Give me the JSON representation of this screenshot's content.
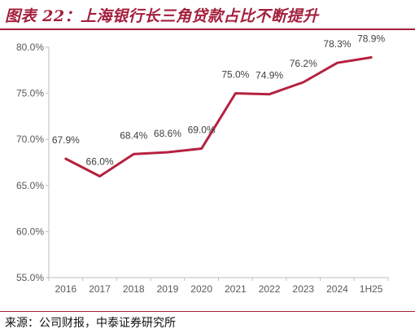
{
  "title": "图表 22：上海银行长三角贷款占比不断提升",
  "source": "来源：公司财报，中泰证券研究所",
  "colors": {
    "accent": "#a31f3c",
    "line": "#b5213f",
    "axis": "#bfbfbf",
    "text": "#595959"
  },
  "chart_data": {
    "type": "line",
    "categories": [
      "2016",
      "2017",
      "2018",
      "2019",
      "2020",
      "2021",
      "2022",
      "2023",
      "2024",
      "1H25"
    ],
    "series": [
      {
        "values": [
          67.9,
          66.0,
          68.4,
          68.6,
          69.0,
          75.0,
          74.9,
          76.2,
          78.3,
          78.9
        ],
        "labels": [
          "67.9%",
          "66.0%",
          "68.4%",
          "68.6%",
          "69.0%",
          "75.0%",
          "74.9%",
          "76.2%",
          "78.3%",
          "78.9%"
        ]
      }
    ],
    "yticks": [
      55,
      60,
      65,
      70,
      75,
      80
    ],
    "ytick_labels": [
      "55.0%",
      "60.0%",
      "65.0%",
      "70.0%",
      "75.0%",
      "80.0%"
    ],
    "ylim": [
      55,
      80
    ],
    "grid": false,
    "legend": "none"
  }
}
